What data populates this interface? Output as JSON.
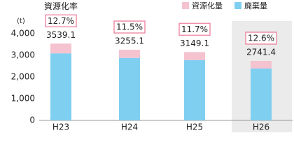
{
  "chart_data": {
    "type": "stacked_bar",
    "unit_label": "(t)",
    "categories": [
      "H23",
      "H24",
      "H25",
      "H26"
    ],
    "series": [
      {
        "name": "廃棄量",
        "color": "#7fcff1",
        "values": [
          3089.6,
          2880.8,
          2780.7,
          2396.0
        ]
      },
      {
        "name": "資源化量",
        "color": "#f5c2d0",
        "values": [
          449.5,
          374.3,
          368.4,
          345.4
        ]
      }
    ],
    "totals": [
      3539.1,
      3255.1,
      3149.1,
      2741.4
    ],
    "recycling_rate": {
      "title": "資源化率",
      "values": [
        12.7,
        11.5,
        11.7,
        12.6
      ],
      "value_labels": [
        "12.7%",
        "11.5%",
        "11.7%",
        "12.6%"
      ],
      "box_color": "#ef8fa8"
    },
    "ylim": [
      0,
      4000
    ],
    "yticks": [
      0,
      {
        "value": 1000,
        "label": "1,000"
      },
      {
        "value": 2000,
        "label": "2,000"
      },
      {
        "value": 3000,
        "label": "3,000"
      },
      {
        "value": 4000,
        "label": "4,000"
      }
    ],
    "highlight_index": 3,
    "highlight_color": "#ebebeb",
    "legend": "top-right"
  }
}
